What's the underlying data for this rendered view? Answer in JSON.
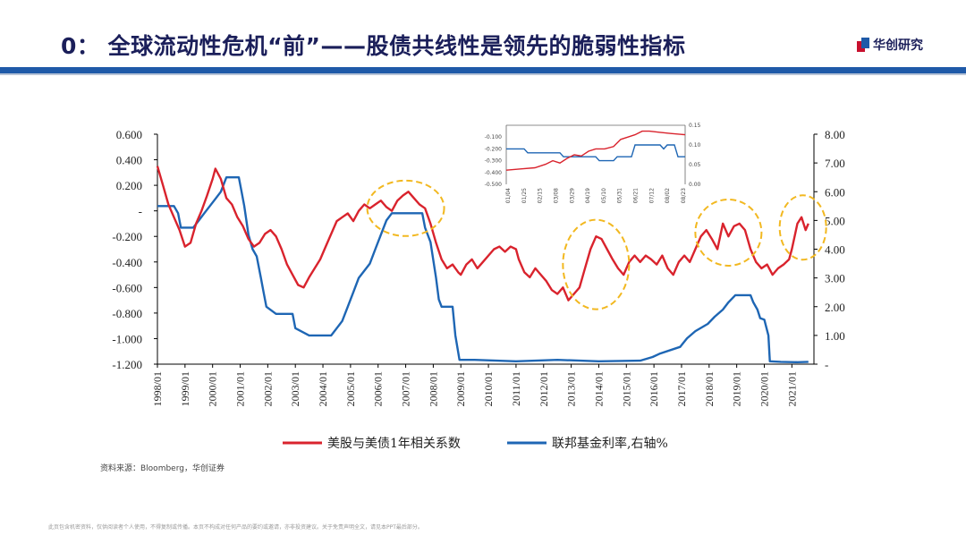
{
  "header": {
    "title": "0：  全球流动性危机“前”——股债共线性是领先的脆弱性指标",
    "logo_text": "华创研究"
  },
  "colors": {
    "accent_blue": "#1f5aa8",
    "series_red": "#d9232d",
    "series_blue": "#1e66b4",
    "highlight": "#f2b820",
    "title": "#1b1f5a"
  },
  "chart_data": [
    {
      "type": "line",
      "title": "",
      "x_ticks": [
        "1998/01",
        "1999/01",
        "2000/01",
        "2001/01",
        "2002/01",
        "2003/01",
        "2004/01",
        "2005/01",
        "2006/01",
        "2007/01",
        "2008/01",
        "2009/01",
        "2010/01",
        "2011/01",
        "2012/01",
        "2013/01",
        "2014/01",
        "2015/01",
        "2016/01",
        "2017/01",
        "2018/01",
        "2019/01",
        "2020/01",
        "2021/01"
      ],
      "y_left_ticks": [
        "0.600",
        "0.400",
        "0.200",
        "-",
        "-0.200",
        "-0.400",
        "-0.600",
        "-0.800",
        "-1.000",
        "-1.200"
      ],
      "y_left_range": [
        -1.2,
        0.6
      ],
      "y_right_ticks": [
        "8.00",
        "7.00",
        "6.00",
        "5.00",
        "4.00",
        "3.00",
        "2.00",
        "1.00",
        "-"
      ],
      "y_right_range": [
        0,
        8
      ],
      "x_range": [
        1998.0,
        2021.8
      ],
      "series": [
        {
          "name": "美股与美债1年相关系数",
          "axis": "left",
          "points": [
            [
              1998.0,
              0.35
            ],
            [
              1998.2,
              0.2
            ],
            [
              1998.4,
              0.05
            ],
            [
              1998.6,
              -0.05
            ],
            [
              1998.8,
              -0.15
            ],
            [
              1999.0,
              -0.28
            ],
            [
              1999.2,
              -0.25
            ],
            [
              1999.4,
              -0.1
            ],
            [
              1999.6,
              0.0
            ],
            [
              1999.8,
              0.12
            ],
            [
              2000.0,
              0.25
            ],
            [
              2000.1,
              0.33
            ],
            [
              2000.3,
              0.25
            ],
            [
              2000.5,
              0.1
            ],
            [
              2000.7,
              0.05
            ],
            [
              2000.9,
              -0.05
            ],
            [
              2001.1,
              -0.12
            ],
            [
              2001.3,
              -0.22
            ],
            [
              2001.5,
              -0.28
            ],
            [
              2001.7,
              -0.25
            ],
            [
              2001.9,
              -0.18
            ],
            [
              2002.1,
              -0.15
            ],
            [
              2002.3,
              -0.2
            ],
            [
              2002.5,
              -0.3
            ],
            [
              2002.7,
              -0.42
            ],
            [
              2002.9,
              -0.5
            ],
            [
              2003.1,
              -0.58
            ],
            [
              2003.3,
              -0.6
            ],
            [
              2003.5,
              -0.52
            ],
            [
              2003.7,
              -0.45
            ],
            [
              2003.9,
              -0.38
            ],
            [
              2004.1,
              -0.28
            ],
            [
              2004.3,
              -0.18
            ],
            [
              2004.5,
              -0.08
            ],
            [
              2004.7,
              -0.05
            ],
            [
              2004.9,
              -0.02
            ],
            [
              2005.1,
              -0.08
            ],
            [
              2005.3,
              0.0
            ],
            [
              2005.5,
              0.05
            ],
            [
              2005.7,
              0.02
            ],
            [
              2005.9,
              0.05
            ],
            [
              2006.1,
              0.08
            ],
            [
              2006.3,
              0.03
            ],
            [
              2006.5,
              0.0
            ],
            [
              2006.7,
              0.08
            ],
            [
              2006.9,
              0.12
            ],
            [
              2007.1,
              0.15
            ],
            [
              2007.3,
              0.1
            ],
            [
              2007.5,
              0.05
            ],
            [
              2007.7,
              0.02
            ],
            [
              2007.9,
              -0.1
            ],
            [
              2008.1,
              -0.25
            ],
            [
              2008.3,
              -0.38
            ],
            [
              2008.5,
              -0.45
            ],
            [
              2008.7,
              -0.42
            ],
            [
              2008.9,
              -0.48
            ],
            [
              2009.0,
              -0.5
            ],
            [
              2009.2,
              -0.42
            ],
            [
              2009.4,
              -0.38
            ],
            [
              2009.6,
              -0.45
            ],
            [
              2009.8,
              -0.4
            ],
            [
              2010.0,
              -0.35
            ],
            [
              2010.2,
              -0.3
            ],
            [
              2010.4,
              -0.28
            ],
            [
              2010.6,
              -0.32
            ],
            [
              2010.8,
              -0.28
            ],
            [
              2011.0,
              -0.3
            ],
            [
              2011.1,
              -0.38
            ],
            [
              2011.3,
              -0.48
            ],
            [
              2011.5,
              -0.52
            ],
            [
              2011.7,
              -0.45
            ],
            [
              2011.9,
              -0.5
            ],
            [
              2012.1,
              -0.55
            ],
            [
              2012.3,
              -0.62
            ],
            [
              2012.5,
              -0.65
            ],
            [
              2012.7,
              -0.6
            ],
            [
              2012.9,
              -0.7
            ],
            [
              2013.1,
              -0.65
            ],
            [
              2013.3,
              -0.6
            ],
            [
              2013.5,
              -0.45
            ],
            [
              2013.7,
              -0.3
            ],
            [
              2013.9,
              -0.2
            ],
            [
              2014.1,
              -0.22
            ],
            [
              2014.3,
              -0.3
            ],
            [
              2014.5,
              -0.38
            ],
            [
              2014.7,
              -0.45
            ],
            [
              2014.9,
              -0.5
            ],
            [
              2015.1,
              -0.4
            ],
            [
              2015.3,
              -0.35
            ],
            [
              2015.5,
              -0.4
            ],
            [
              2015.7,
              -0.35
            ],
            [
              2015.9,
              -0.38
            ],
            [
              2016.1,
              -0.42
            ],
            [
              2016.3,
              -0.35
            ],
            [
              2016.5,
              -0.45
            ],
            [
              2016.7,
              -0.5
            ],
            [
              2016.9,
              -0.4
            ],
            [
              2017.1,
              -0.35
            ],
            [
              2017.3,
              -0.4
            ],
            [
              2017.5,
              -0.3
            ],
            [
              2017.7,
              -0.2
            ],
            [
              2017.9,
              -0.15
            ],
            [
              2018.1,
              -0.22
            ],
            [
              2018.3,
              -0.3
            ],
            [
              2018.5,
              -0.1
            ],
            [
              2018.7,
              -0.2
            ],
            [
              2018.9,
              -0.12
            ],
            [
              2019.1,
              -0.1
            ],
            [
              2019.3,
              -0.15
            ],
            [
              2019.5,
              -0.3
            ],
            [
              2019.7,
              -0.4
            ],
            [
              2019.9,
              -0.45
            ],
            [
              2020.1,
              -0.42
            ],
            [
              2020.3,
              -0.5
            ],
            [
              2020.5,
              -0.45
            ],
            [
              2020.7,
              -0.42
            ],
            [
              2020.9,
              -0.38
            ],
            [
              2021.0,
              -0.3
            ],
            [
              2021.1,
              -0.2
            ],
            [
              2021.2,
              -0.1
            ],
            [
              2021.35,
              -0.05
            ],
            [
              2021.5,
              -0.15
            ],
            [
              2021.6,
              -0.1
            ]
          ]
        },
        {
          "name": "联邦基金利率,右轴%",
          "axis": "right",
          "points": [
            [
              1998.0,
              5.5
            ],
            [
              1998.3,
              5.5
            ],
            [
              1998.6,
              5.5
            ],
            [
              1998.75,
              5.25
            ],
            [
              1998.85,
              4.75
            ],
            [
              1999.0,
              4.75
            ],
            [
              1999.3,
              4.75
            ],
            [
              1999.5,
              5.0
            ],
            [
              1999.7,
              5.25
            ],
            [
              1999.9,
              5.5
            ],
            [
              2000.1,
              5.75
            ],
            [
              2000.3,
              6.0
            ],
            [
              2000.5,
              6.5
            ],
            [
              2000.7,
              6.5
            ],
            [
              2000.95,
              6.5
            ],
            [
              2001.05,
              6.0
            ],
            [
              2001.15,
              5.5
            ],
            [
              2001.3,
              4.5
            ],
            [
              2001.45,
              4.0
            ],
            [
              2001.6,
              3.75
            ],
            [
              2001.75,
              3.0
            ],
            [
              2001.85,
              2.5
            ],
            [
              2001.95,
              2.0
            ],
            [
              2002.3,
              1.75
            ],
            [
              2002.9,
              1.75
            ],
            [
              2003.0,
              1.25
            ],
            [
              2003.5,
              1.0
            ],
            [
              2004.3,
              1.0
            ],
            [
              2004.5,
              1.25
            ],
            [
              2004.7,
              1.5
            ],
            [
              2004.9,
              2.0
            ],
            [
              2005.1,
              2.5
            ],
            [
              2005.3,
              3.0
            ],
            [
              2005.5,
              3.25
            ],
            [
              2005.7,
              3.5
            ],
            [
              2005.9,
              4.0
            ],
            [
              2006.1,
              4.5
            ],
            [
              2006.3,
              5.0
            ],
            [
              2006.5,
              5.25
            ],
            [
              2007.6,
              5.25
            ],
            [
              2007.7,
              4.75
            ],
            [
              2007.9,
              4.25
            ],
            [
              2008.1,
              3.0
            ],
            [
              2008.2,
              2.25
            ],
            [
              2008.3,
              2.0
            ],
            [
              2008.7,
              2.0
            ],
            [
              2008.8,
              1.0
            ],
            [
              2008.95,
              0.15
            ],
            [
              2009.5,
              0.15
            ],
            [
              2011.0,
              0.1
            ],
            [
              2012.5,
              0.15
            ],
            [
              2014.0,
              0.1
            ],
            [
              2015.5,
              0.12
            ],
            [
              2015.95,
              0.25
            ],
            [
              2016.2,
              0.36
            ],
            [
              2016.95,
              0.6
            ],
            [
              2017.2,
              0.9
            ],
            [
              2017.5,
              1.15
            ],
            [
              2017.95,
              1.4
            ],
            [
              2018.2,
              1.65
            ],
            [
              2018.5,
              1.9
            ],
            [
              2018.7,
              2.15
            ],
            [
              2018.95,
              2.4
            ],
            [
              2019.5,
              2.4
            ],
            [
              2019.6,
              2.15
            ],
            [
              2019.75,
              1.9
            ],
            [
              2019.85,
              1.6
            ],
            [
              2020.0,
              1.55
            ],
            [
              2020.15,
              1.0
            ],
            [
              2020.2,
              0.1
            ],
            [
              2020.6,
              0.08
            ],
            [
              2021.2,
              0.07
            ],
            [
              2021.6,
              0.08
            ]
          ]
        }
      ],
      "highlights": [
        "2006-2007",
        "2013-2014",
        "2018-2019",
        "2021"
      ]
    },
    {
      "type": "line",
      "title": "inset",
      "x_ticks": [
        "01/04",
        "01/25",
        "02/15",
        "03/08",
        "03/29",
        "04/19",
        "05/10",
        "05/31",
        "06/21",
        "07/12",
        "08/02",
        "08/23"
      ],
      "y_left_ticks": [
        "-0.100",
        "-0.200",
        "-0.300",
        "-0.400",
        "-0.500"
      ],
      "y_left_range": [
        -0.5,
        0.0
      ],
      "y_right_ticks": [
        "0.15",
        "0.10",
        "0.05",
        "0.00"
      ],
      "y_right_range": [
        0,
        0.15
      ],
      "series": [
        {
          "name": "美股与美债1年相关系数",
          "axis": "left",
          "points": [
            [
              0,
              -0.38
            ],
            [
              0.08,
              -0.37
            ],
            [
              0.16,
              -0.36
            ],
            [
              0.22,
              -0.33
            ],
            [
              0.26,
              -0.3
            ],
            [
              0.3,
              -0.32
            ],
            [
              0.34,
              -0.28
            ],
            [
              0.38,
              -0.25
            ],
            [
              0.42,
              -0.26
            ],
            [
              0.46,
              -0.22
            ],
            [
              0.5,
              -0.2
            ],
            [
              0.55,
              -0.2
            ],
            [
              0.6,
              -0.18
            ],
            [
              0.64,
              -0.12
            ],
            [
              0.68,
              -0.1
            ],
            [
              0.72,
              -0.08
            ],
            [
              0.76,
              -0.05
            ],
            [
              0.8,
              -0.05
            ],
            [
              0.86,
              -0.06
            ],
            [
              0.92,
              -0.07
            ],
            [
              1.0,
              -0.08
            ]
          ]
        },
        {
          "name": "联邦基金利率,右轴%",
          "axis": "right",
          "points": [
            [
              0,
              0.09
            ],
            [
              0.1,
              0.09
            ],
            [
              0.12,
              0.08
            ],
            [
              0.3,
              0.08
            ],
            [
              0.32,
              0.07
            ],
            [
              0.5,
              0.07
            ],
            [
              0.52,
              0.06
            ],
            [
              0.6,
              0.06
            ],
            [
              0.62,
              0.07
            ],
            [
              0.7,
              0.07
            ],
            [
              0.72,
              0.1
            ],
            [
              0.86,
              0.1
            ],
            [
              0.88,
              0.09
            ],
            [
              0.9,
              0.1
            ],
            [
              0.94,
              0.1
            ],
            [
              0.96,
              0.07
            ],
            [
              1.0,
              0.07
            ]
          ]
        }
      ]
    }
  ],
  "legend": [
    {
      "label": "美股与美债1年相关系数",
      "color": "#d9232d"
    },
    {
      "label": "联邦基金利率,右轴%",
      "color": "#1e66b4"
    }
  ],
  "source": "资料来源：Bloomberg，华创证券",
  "footer": "此页包含机密资料，仅供阅读者个人使用，不得复制或传播。本页不构成对任何产品的要约或邀请，亦非投资建议。关于免责声明全文，请见本PPT最后部分。"
}
